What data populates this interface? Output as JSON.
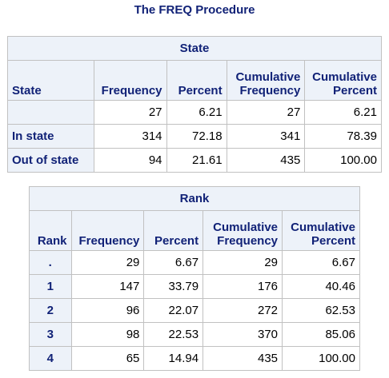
{
  "procedure_title": "The FREQ Procedure",
  "tables": [
    {
      "title": "State",
      "headers": [
        "State",
        "Frequency",
        "Percent",
        "Cumulative Frequency",
        "Cumulative Percent"
      ],
      "header_lines": [
        [
          "State"
        ],
        [
          "Frequency"
        ],
        [
          "Percent"
        ],
        [
          "Cumulative",
          "Frequency"
        ],
        [
          "Cumulative",
          "Percent"
        ]
      ],
      "rows": [
        {
          "label": "",
          "values": [
            "27",
            "6.21",
            "27",
            "6.21"
          ]
        },
        {
          "label": "In state",
          "values": [
            "314",
            "72.18",
            "341",
            "78.39"
          ]
        },
        {
          "label": "Out of state",
          "values": [
            "94",
            "21.61",
            "435",
            "100.00"
          ]
        }
      ]
    },
    {
      "title": "Rank",
      "headers": [
        "Rank",
        "Frequency",
        "Percent",
        "Cumulative Frequency",
        "Cumulative Percent"
      ],
      "header_lines": [
        [
          "Rank"
        ],
        [
          "Frequency"
        ],
        [
          "Percent"
        ],
        [
          "Cumulative",
          "Frequency"
        ],
        [
          "Cumulative",
          "Percent"
        ]
      ],
      "rows": [
        {
          "label": ".",
          "values": [
            "29",
            "6.67",
            "29",
            "6.67"
          ]
        },
        {
          "label": "1",
          "values": [
            "147",
            "33.79",
            "176",
            "40.46"
          ]
        },
        {
          "label": "2",
          "values": [
            "96",
            "22.07",
            "272",
            "62.53"
          ]
        },
        {
          "label": "3",
          "values": [
            "98",
            "22.53",
            "370",
            "85.06"
          ]
        },
        {
          "label": "4",
          "values": [
            "65",
            "14.94",
            "435",
            "100.00"
          ]
        }
      ]
    }
  ],
  "colors": {
    "header_bg": "#edf2f9",
    "header_text": "#112277",
    "border": "#c1c1c1"
  }
}
